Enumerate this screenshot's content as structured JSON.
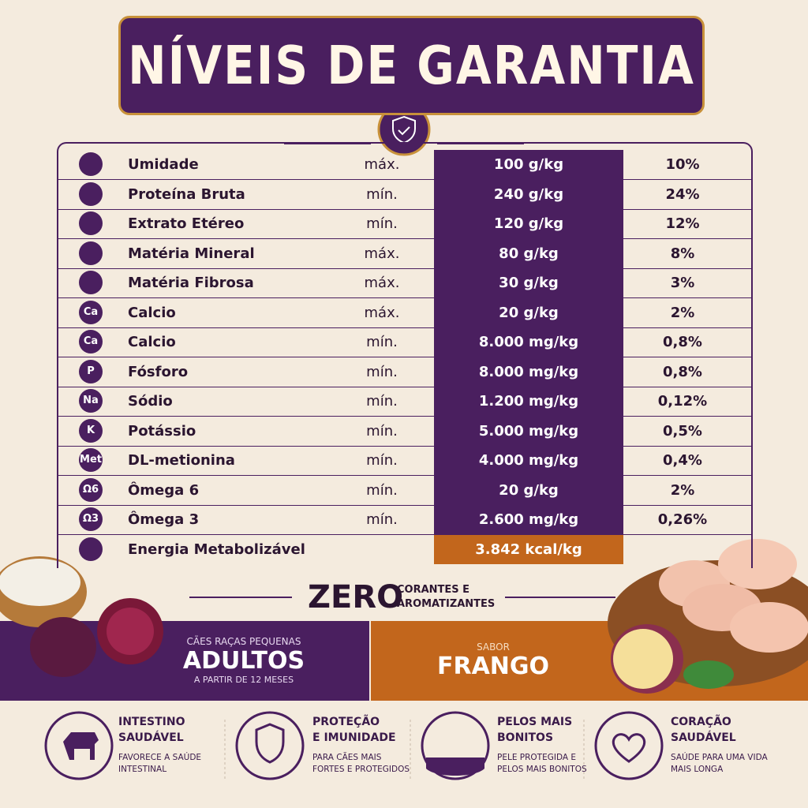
{
  "header": {
    "title": "NÍVEIS DE GARANTIA"
  },
  "table": {
    "rows": [
      {
        "label": "Umidade",
        "qualifier": "máx.",
        "amount": "100 g/kg",
        "percent": "10%"
      },
      {
        "label": "Proteína Bruta",
        "qualifier": "mín.",
        "amount": "240 g/kg",
        "percent": "24%"
      },
      {
        "label": "Extrato Etéreo",
        "qualifier": "mín.",
        "amount": "120 g/kg",
        "percent": "12%"
      },
      {
        "label": "Matéria Mineral",
        "qualifier": "máx.",
        "amount": "80 g/kg",
        "percent": "8%"
      },
      {
        "label": "Matéria Fibrosa",
        "qualifier": "máx.",
        "amount": "30 g/kg",
        "percent": "3%"
      },
      {
        "icon": "Ca",
        "label": "Calcio",
        "qualifier": "máx.",
        "amount": "20 g/kg",
        "percent": "2%"
      },
      {
        "icon": "Ca",
        "label": "Calcio",
        "qualifier": "mín.",
        "amount": "8.000 mg/kg",
        "percent": "0,8%"
      },
      {
        "icon": "P",
        "label": "Fósforo",
        "qualifier": "mín.",
        "amount": "8.000 mg/kg",
        "percent": "0,8%"
      },
      {
        "icon": "Na",
        "label": "Sódio",
        "qualifier": "mín.",
        "amount": "1.200 mg/kg",
        "percent": "0,12%"
      },
      {
        "icon": "K",
        "label": "Potássio",
        "qualifier": "mín.",
        "amount": "5.000 mg/kg",
        "percent": "0,5%"
      },
      {
        "icon": "Met",
        "label": "DL-metionina",
        "qualifier": "mín.",
        "amount": "4.000 mg/kg",
        "percent": "0,4%"
      },
      {
        "icon": "Ω6",
        "label": "Ômega 6",
        "qualifier": "mín.",
        "amount": "20 g/kg",
        "percent": "2%"
      },
      {
        "icon": "Ω3",
        "label": "Ômega 3",
        "qualifier": "mín.",
        "amount": "2.600 mg/kg",
        "percent": "0,26%"
      },
      {
        "label": "Energia Metabolizável",
        "amount": "3.842 kcal/kg"
      }
    ]
  },
  "zero": {
    "word": "ZERO",
    "lines": [
      "CORANTES E",
      "AROMATIZANTES"
    ]
  },
  "bands": {
    "left": {
      "top": "CÃES RAÇAS PEQUENAS",
      "main": "ADULTOS",
      "bottom": "A PARTIR DE 12 MESES"
    },
    "right": {
      "top": "SABOR",
      "main": "FRANGO"
    }
  },
  "features": [
    {
      "title": [
        "INTESTINO",
        "SAUDÁVEL"
      ],
      "desc": [
        "FAVORECE A SAÚDE",
        "INTESTINAL"
      ]
    },
    {
      "title": [
        "PROTEÇÃO",
        "E IMUNIDADE"
      ],
      "desc": [
        "PARA CÃES MAIS",
        "FORTES E PROTEGIDOS"
      ]
    },
    {
      "title": [
        "PELOS MAIS",
        "BONITOS"
      ],
      "desc": [
        "PELE PROTEGIDA E",
        "PELOS MAIS BONITOS"
      ]
    },
    {
      "title": [
        "CORAÇÃO",
        "SAUDÁVEL"
      ],
      "desc": [
        "SAÚDE PARA UMA VIDA",
        "MAIS LONGA"
      ]
    }
  ]
}
